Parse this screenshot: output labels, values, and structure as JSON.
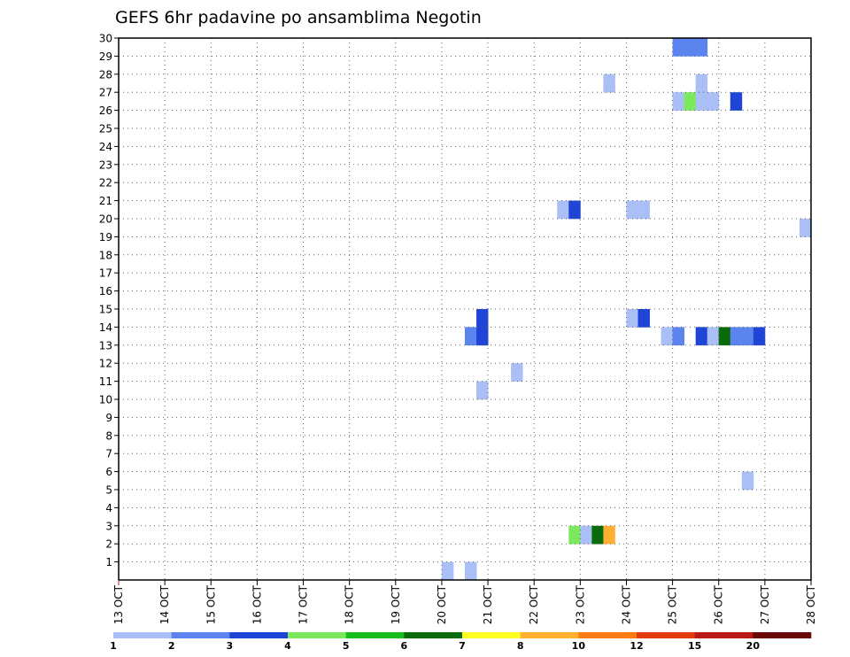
{
  "chart_data": {
    "type": "heatmap",
    "title": "GEFS 6hr padavine po ansamblima Negotin",
    "xlabel": "",
    "ylabel": "",
    "x_ticks": [
      "13 OCT",
      "14 OCT",
      "15 OCT",
      "16 OCT",
      "17 OCT",
      "18 OCT",
      "19 OCT",
      "20 OCT",
      "21 OCT",
      "22 OCT",
      "23 OCT",
      "24 OCT",
      "25 OCT",
      "26 OCT",
      "27 OCT",
      "28 OCT"
    ],
    "y_ticks": [
      "1",
      "2",
      "3",
      "4",
      "5",
      "6",
      "7",
      "8",
      "9",
      "10",
      "11",
      "12",
      "13",
      "14",
      "15",
      "16",
      "17",
      "18",
      "19",
      "20",
      "21",
      "22",
      "23",
      "24",
      "25",
      "26",
      "27",
      "28",
      "29",
      "30"
    ],
    "xlim": [
      0,
      60
    ],
    "ylim": [
      0,
      30
    ],
    "grid": true,
    "legend_position": "bottom",
    "legend": {
      "labels": [
        "1",
        "2",
        "3",
        "4",
        "5",
        "6",
        "7",
        "8",
        "10",
        "12",
        "15",
        "20"
      ],
      "colors": [
        "#a9bff5",
        "#5b84ee",
        "#1f45d6",
        "#7ce85d",
        "#18bd1c",
        "#0a6b0a",
        "#ffff22",
        "#ffb030",
        "#ff7a10",
        "#e53a10",
        "#bb1818",
        "#6b0808"
      ]
    },
    "cells": [
      {
        "t": 28,
        "m": 0,
        "c": 0
      },
      {
        "t": 30,
        "m": 0,
        "c": 0
      },
      {
        "t": 31,
        "m": 10,
        "c": 0
      },
      {
        "t": 31,
        "m": 13,
        "c": 1
      },
      {
        "t": 31,
        "m": 14,
        "c": 2
      },
      {
        "t": 30,
        "m": 13,
        "c": 1
      },
      {
        "t": 31,
        "m": 13,
        "c": 2
      },
      {
        "t": 34,
        "m": 11,
        "c": 0
      },
      {
        "t": 38,
        "m": 20,
        "c": 0
      },
      {
        "t": 39,
        "m": 20,
        "c": 2
      },
      {
        "t": 39,
        "m": 2,
        "c": 3
      },
      {
        "t": 40,
        "m": 2,
        "c": 0
      },
      {
        "t": 41,
        "m": 2,
        "c": 5
      },
      {
        "t": 42,
        "m": 2,
        "c": 7
      },
      {
        "t": 42,
        "m": 27,
        "c": 0
      },
      {
        "t": 44,
        "m": 20,
        "c": 0
      },
      {
        "t": 45,
        "m": 20,
        "c": 0
      },
      {
        "t": 44,
        "m": 14,
        "c": 0
      },
      {
        "t": 45,
        "m": 14,
        "c": 2
      },
      {
        "t": 47,
        "m": 13,
        "c": 0
      },
      {
        "t": 48,
        "m": 13,
        "c": 1
      },
      {
        "t": 48,
        "m": 26,
        "c": 0
      },
      {
        "t": 49,
        "m": 26,
        "c": 3
      },
      {
        "t": 50,
        "m": 26,
        "c": 0
      },
      {
        "t": 51,
        "m": 26,
        "c": 0
      },
      {
        "t": 50,
        "m": 27,
        "c": 0
      },
      {
        "t": 48,
        "m": 29,
        "c": 1
      },
      {
        "t": 49,
        "m": 29,
        "c": 1
      },
      {
        "t": 50,
        "m": 29,
        "c": 1
      },
      {
        "t": 50,
        "m": 13,
        "c": 2
      },
      {
        "t": 51,
        "m": 13,
        "c": 0
      },
      {
        "t": 52,
        "m": 13,
        "c": 5
      },
      {
        "t": 53,
        "m": 13,
        "c": 1
      },
      {
        "t": 54,
        "m": 13,
        "c": 1
      },
      {
        "t": 55,
        "m": 13,
        "c": 2
      },
      {
        "t": 53,
        "m": 26,
        "c": 2
      },
      {
        "t": 54,
        "m": 5,
        "c": 0
      },
      {
        "t": 59,
        "m": 19,
        "c": 0
      }
    ]
  }
}
